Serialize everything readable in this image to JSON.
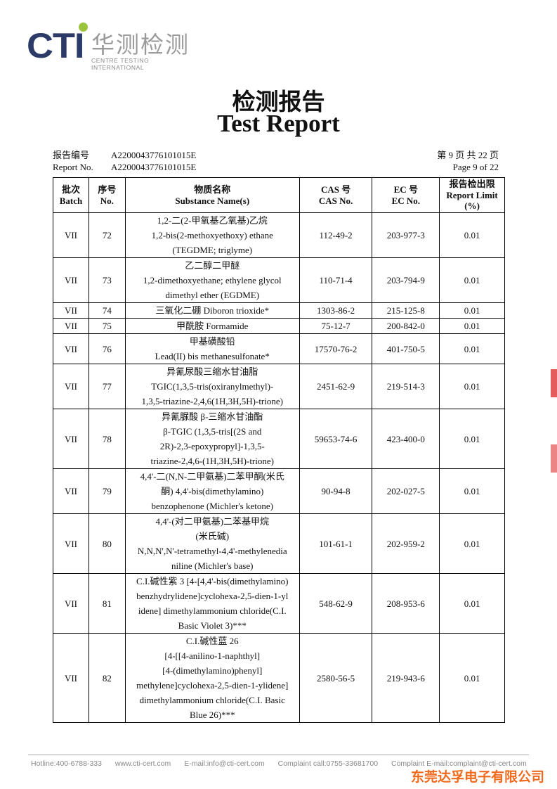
{
  "logo": {
    "brand": "CTI",
    "cn": "华测检测",
    "en": "CENTRE TESTING INTERNATIONAL",
    "brand_color": "#2b3a67",
    "dot_color": "#9bc53d"
  },
  "title": {
    "cn": "检测报告",
    "en": "Test Report"
  },
  "report": {
    "no_label_cn": "报告编号",
    "no_label_en": "Report No.",
    "no_value": "A2200043776101015E",
    "page_cn": "第 9 页  共 22 页",
    "page_en": "Page 9 of 22"
  },
  "table": {
    "headers": [
      {
        "cn": "批次",
        "en": "Batch"
      },
      {
        "cn": "序号",
        "en": "No."
      },
      {
        "cn": "物质名称",
        "en": "Substance Name(s)"
      },
      {
        "cn": "CAS 号",
        "en": "CAS No."
      },
      {
        "cn": "EC 号",
        "en": "EC No."
      },
      {
        "cn": "报告检出限",
        "en": "Report Limit",
        "en2": "(%)"
      }
    ],
    "rows": [
      {
        "batch": "VII",
        "no": "72",
        "name": [
          "1,2-二(2-甲氧基乙氧基)乙烷",
          "1,2-bis(2-methoxyethoxy) ethane",
          "(TEGDME; triglyme)"
        ],
        "cas": "112-49-2",
        "ec": "203-977-3",
        "limit": "0.01"
      },
      {
        "batch": "VII",
        "no": "73",
        "name": [
          "乙二醇二甲醚",
          "1,2-dimethoxyethane; ethylene glycol",
          "dimethyl ether (EGDME)"
        ],
        "cas": "110-71-4",
        "ec": "203-794-9",
        "limit": "0.01"
      },
      {
        "batch": "VII",
        "no": "74",
        "name": [
          "三氧化二硼 Diboron trioxide*"
        ],
        "cas": "1303-86-2",
        "ec": "215-125-8",
        "limit": "0.01"
      },
      {
        "batch": "VII",
        "no": "75",
        "name": [
          "甲酰胺 Formamide"
        ],
        "cas": "75-12-7",
        "ec": "200-842-0",
        "limit": "0.01"
      },
      {
        "batch": "VII",
        "no": "76",
        "name": [
          "甲基磺酸铅",
          "Lead(II) bis methanesulfonate*"
        ],
        "cas": "17570-76-2",
        "ec": "401-750-5",
        "limit": "0.01"
      },
      {
        "batch": "VII",
        "no": "77",
        "name": [
          "异氰尿酸三缩水甘油脂",
          "TGIC(1,3,5-tris(oxiranylmethyl)-",
          "1,3,5-triazine-2,4,6(1H,3H,5H)-trione)"
        ],
        "cas": "2451-62-9",
        "ec": "219-514-3",
        "limit": "0.01"
      },
      {
        "batch": "VII",
        "no": "78",
        "name": [
          "异氰脲酸 β-三缩水甘油酯",
          "β-TGIC (1,3,5-tris[(2S and",
          "2R)-2,3-epoxypropyl]-1,3,5-",
          "triazine-2,4,6-(1H,3H,5H)-trione)"
        ],
        "cas": "59653-74-6",
        "ec": "423-400-0",
        "limit": "0.01"
      },
      {
        "batch": "VII",
        "no": "79",
        "name": [
          "4,4'-二(N,N-二甲氨基)二苯甲酮(米氏",
          "酮) 4,4'-bis(dimethylamino)",
          "benzophenone (Michler's ketone)"
        ],
        "cas": "90-94-8",
        "ec": "202-027-5",
        "limit": "0.01"
      },
      {
        "batch": "VII",
        "no": "80",
        "name": [
          "4,4'-(对二甲氨基)二苯基甲烷",
          "(米氏碱)",
          "N,N,N',N'-tetramethyl-4,4'-methylenedia",
          "niline (Michler's base)"
        ],
        "cas": "101-61-1",
        "ec": "202-959-2",
        "limit": "0.01"
      },
      {
        "batch": "VII",
        "no": "81",
        "name": [
          "C.I.碱性紫 3 [4-[4,4'-bis(dimethylamino)",
          "benzhydrylidene]cyclohexa-2,5-dien-1-yl",
          "idene] dimethylammonium chloride(C.I.",
          "Basic Violet 3)***"
        ],
        "cas": "548-62-9",
        "ec": "208-953-6",
        "limit": "0.01"
      },
      {
        "batch": "VII",
        "no": "82",
        "name": [
          "C.I.碱性蓝 26",
          "[4-[[4-anilino-1-naphthyl]",
          "[4-(dimethylamino)phenyl]",
          "methylene]cyclohexa-2,5-dien-1-ylidene]",
          "dimethylammonium chloride(C.I. Basic",
          "Blue 26)***"
        ],
        "cas": "2580-56-5",
        "ec": "219-943-6",
        "limit": "0.01"
      }
    ]
  },
  "footer": {
    "items": [
      "Hotline:400-6788-333",
      "www.cti-cert.com",
      "E-mail:info@cti-cert.com",
      "Complaint call:0755-33681700",
      "Complaint E-mail:complaint@cti-cert.com"
    ],
    "company": "东莞达孚电子有限公司",
    "company_color": "#f06a1e"
  }
}
